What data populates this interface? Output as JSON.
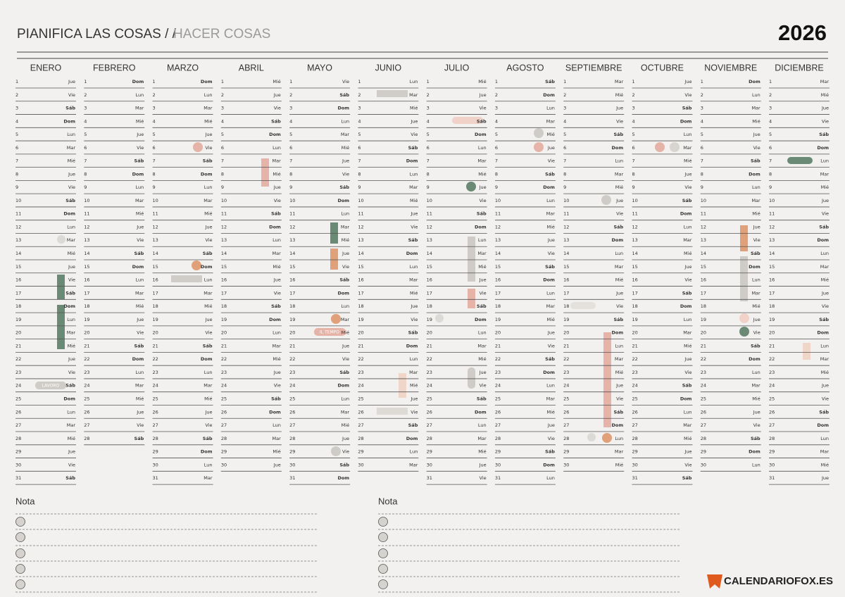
{
  "header": {
    "title": "PIANIFICA LAS COSAS / /",
    "subtitle": "HACER COSAS",
    "year": "2026"
  },
  "months": [
    {
      "name": "ENERO",
      "days": [
        1,
        2,
        3,
        4,
        5,
        6,
        7,
        8,
        9,
        10,
        11,
        12,
        13,
        14,
        15,
        16,
        17,
        18,
        19,
        20,
        21,
        22,
        23,
        24,
        25,
        26,
        27,
        28,
        29,
        30,
        31
      ],
      "weekdays": [
        "Jue",
        "Vie",
        "Sáb",
        "Dom",
        "Lun",
        "Mar",
        "Mié",
        "Jue",
        "Vie",
        "Sáb",
        "Dom",
        "Lun",
        "Mar",
        "Mié",
        "Jue",
        "Vie",
        "Sáb",
        "Dom",
        "Lun",
        "Mar",
        "Mié",
        "Jue",
        "Vie",
        "Sáb",
        "Dom",
        "Lun",
        "Mar",
        "Mié",
        "Jue",
        "Vie",
        "Sáb"
      ]
    },
    {
      "name": "FEBRERO",
      "days": [
        1,
        2,
        3,
        4,
        5,
        6,
        7,
        8,
        9,
        10,
        11,
        12,
        13,
        14,
        15,
        16,
        17,
        18,
        19,
        20,
        21,
        22,
        23,
        24,
        25,
        26,
        27,
        28
      ],
      "weekdays": [
        "Dom",
        "Lun",
        "Mar",
        "Mié",
        "Jue",
        "Vie",
        "Sáb",
        "Dom",
        "Lun",
        "Mar",
        "Mié",
        "Jue",
        "Vie",
        "Sáb",
        "Dom",
        "Lun",
        "Mar",
        "Mié",
        "Jue",
        "Vie",
        "Sáb",
        "Dom",
        "Lun",
        "Mar",
        "Mié",
        "Jue",
        "Vie",
        "Sáb"
      ]
    },
    {
      "name": "MARZO",
      "days": [
        1,
        2,
        3,
        4,
        5,
        6,
        7,
        8,
        9,
        10,
        11,
        12,
        13,
        14,
        15,
        16,
        17,
        18,
        19,
        20,
        21,
        22,
        23,
        24,
        25,
        26,
        27,
        28,
        29,
        30,
        31
      ],
      "weekdays": [
        "Dom",
        "Lun",
        "Mar",
        "Mié",
        "Jue",
        "Vie",
        "Sáb",
        "Dom",
        "Lun",
        "Mar",
        "Mié",
        "Jue",
        "Vie",
        "Sáb",
        "Dom",
        "Lun",
        "Mar",
        "Mié",
        "Jue",
        "Vie",
        "Sáb",
        "Dom",
        "Lun",
        "Mar",
        "Mié",
        "Jue",
        "Vie",
        "Sáb",
        "Dom",
        "Lun",
        "Mar"
      ]
    },
    {
      "name": "ABRIL",
      "days": [
        1,
        2,
        3,
        4,
        5,
        6,
        7,
        8,
        9,
        10,
        11,
        12,
        13,
        14,
        15,
        16,
        17,
        18,
        19,
        20,
        21,
        22,
        23,
        24,
        25,
        26,
        27,
        28,
        29,
        30
      ],
      "weekdays": [
        "Mié",
        "Jue",
        "Vie",
        "Sáb",
        "Dom",
        "Lun",
        "Mar",
        "Mié",
        "Jue",
        "Vie",
        "Sáb",
        "Dom",
        "Lun",
        "Mar",
        "Mié",
        "Jue",
        "Vie",
        "Sáb",
        "Dom",
        "Lun",
        "Mar",
        "Mié",
        "Jue",
        "Vie",
        "Sáb",
        "Dom",
        "Lun",
        "Mar",
        "Mié",
        "Jue"
      ]
    },
    {
      "name": "MAYO",
      "days": [
        1,
        2,
        3,
        4,
        5,
        6,
        7,
        8,
        9,
        10,
        11,
        12,
        13,
        14,
        15,
        16,
        17,
        18,
        19,
        20,
        21,
        22,
        23,
        24,
        25,
        26,
        27,
        28,
        29,
        30,
        31
      ],
      "weekdays": [
        "Vie",
        "Sáb",
        "Dom",
        "Lun",
        "Mar",
        "Mié",
        "Jue",
        "Vie",
        "Sáb",
        "Dom",
        "Lun",
        "Mar",
        "Mié",
        "Jue",
        "Vie",
        "Sáb",
        "Dom",
        "Lun",
        "Mar",
        "Mié",
        "Jue",
        "Vie",
        "Sáb",
        "Dom",
        "Lun",
        "Mar",
        "Mié",
        "Jue",
        "Vie",
        "Sáb",
        "Dom"
      ]
    },
    {
      "name": "JUNIO",
      "days": [
        1,
        2,
        3,
        4,
        5,
        6,
        7,
        8,
        9,
        10,
        11,
        12,
        13,
        14,
        15,
        16,
        17,
        18,
        19,
        20,
        21,
        22,
        23,
        24,
        25,
        26,
        27,
        28,
        29,
        30
      ],
      "weekdays": [
        "Lun",
        "Mar",
        "Mié",
        "Jue",
        "Vie",
        "Sáb",
        "Dom",
        "Lun",
        "Mar",
        "Mié",
        "Jue",
        "Vie",
        "Sáb",
        "Dom",
        "Lun",
        "Mar",
        "Mié",
        "Jue",
        "Vie",
        "Sáb",
        "Dom",
        "Lun",
        "Mar",
        "Mié",
        "Jue",
        "Vie",
        "Sáb",
        "Dom",
        "Lun",
        "Mar"
      ]
    },
    {
      "name": "JULIO",
      "days": [
        1,
        2,
        3,
        4,
        5,
        6,
        7,
        8,
        9,
        10,
        11,
        12,
        13,
        14,
        15,
        16,
        17,
        18,
        19,
        20,
        21,
        22,
        23,
        24,
        25,
        26,
        27,
        28,
        29,
        30,
        31
      ],
      "weekdays": [
        "Mié",
        "Jue",
        "Vie",
        "Sáb",
        "Dom",
        "Lun",
        "Mar",
        "Mié",
        "Jue",
        "Vie",
        "Sáb",
        "Dom",
        "Lun",
        "Mar",
        "Mié",
        "Jue",
        "Vie",
        "Sáb",
        "Dom",
        "Lun",
        "Mar",
        "Mié",
        "Jue",
        "Vie",
        "Sáb",
        "Dom",
        "Lun",
        "Mar",
        "Mié",
        "Jue",
        "Vie"
      ]
    },
    {
      "name": "AGOSTO",
      "days": [
        1,
        2,
        3,
        4,
        5,
        6,
        7,
        8,
        9,
        10,
        11,
        12,
        13,
        14,
        15,
        16,
        17,
        18,
        19,
        20,
        21,
        22,
        23,
        24,
        25,
        26,
        27,
        28,
        29,
        30,
        31
      ],
      "weekdays": [
        "Sáb",
        "Dom",
        "Lun",
        "Mar",
        "Mié",
        "Jue",
        "Vie",
        "Sáb",
        "Dom",
        "Lun",
        "Mar",
        "Mié",
        "Jue",
        "Vie",
        "Sáb",
        "Dom",
        "Lun",
        "Mar",
        "Mié",
        "Jue",
        "Vie",
        "Sáb",
        "Dom",
        "Lun",
        "Mar",
        "Mié",
        "Jue",
        "Vie",
        "Sáb",
        "Dom",
        "Lun"
      ]
    },
    {
      "name": "SEPTIEMBRE",
      "days": [
        1,
        2,
        3,
        4,
        5,
        6,
        7,
        8,
        9,
        10,
        11,
        12,
        13,
        14,
        15,
        16,
        17,
        18,
        19,
        20,
        21,
        22,
        23,
        24,
        25,
        26,
        27,
        28,
        29,
        30
      ],
      "weekdays": [
        "Mar",
        "Mié",
        "Jue",
        "Vie",
        "Sáb",
        "Dom",
        "Lun",
        "Mar",
        "Mié",
        "Jue",
        "Vie",
        "Sáb",
        "Dom",
        "Lun",
        "Mar",
        "Mié",
        "Jue",
        "Vie",
        "Sáb",
        "Dom",
        "Lun",
        "Mar",
        "Mié",
        "Jue",
        "Vie",
        "Sáb",
        "Dom",
        "Lun",
        "Mar",
        "Mié"
      ]
    },
    {
      "name": "OCTUBRE",
      "days": [
        1,
        2,
        3,
        4,
        5,
        6,
        7,
        8,
        9,
        10,
        11,
        12,
        13,
        14,
        15,
        16,
        17,
        18,
        19,
        20,
        21,
        22,
        23,
        24,
        25,
        26,
        27,
        28,
        29,
        30,
        31
      ],
      "weekdays": [
        "Jue",
        "Vie",
        "Sáb",
        "Dom",
        "Lun",
        "Mar",
        "Mié",
        "Jue",
        "Vie",
        "Sáb",
        "Dom",
        "Lun",
        "Mar",
        "Mié",
        "Jue",
        "Vie",
        "Sáb",
        "Dom",
        "Lun",
        "Mar",
        "Mié",
        "Jue",
        "Vie",
        "Sáb",
        "Dom",
        "Lun",
        "Mar",
        "Mié",
        "Jue",
        "Vie",
        "Sáb"
      ]
    },
    {
      "name": "NOVIEMBRE",
      "days": [
        1,
        2,
        3,
        4,
        5,
        6,
        7,
        8,
        9,
        10,
        11,
        12,
        13,
        14,
        15,
        16,
        17,
        18,
        19,
        20,
        21,
        22,
        23,
        24,
        25,
        26,
        27,
        28,
        29,
        30
      ],
      "weekdays": [
        "Dom",
        "Lun",
        "Mar",
        "Mié",
        "Jue",
        "Vie",
        "Sáb",
        "Dom",
        "Lun",
        "Mar",
        "Mié",
        "Jue",
        "Vie",
        "Sáb",
        "Dom",
        "Lun",
        "Mar",
        "Mié",
        "Jue",
        "Vie",
        "Sáb",
        "Dom",
        "Lun",
        "Mar",
        "Mié",
        "Jue",
        "Vie",
        "Sáb",
        "Dom",
        "Lun"
      ]
    },
    {
      "name": "DICIEMBRE",
      "days": [
        1,
        2,
        3,
        4,
        5,
        6,
        7,
        8,
        9,
        10,
        11,
        12,
        13,
        14,
        15,
        16,
        17,
        18,
        19,
        20,
        21,
        22,
        23,
        24,
        25,
        26,
        27,
        28,
        29,
        30,
        31
      ],
      "weekdays": [
        "Mar",
        "Mié",
        "Jue",
        "Vie",
        "Sáb",
        "Dom",
        "Lun",
        "Mar",
        "Mié",
        "Jue",
        "Vie",
        "Sáb",
        "Dom",
        "Lun",
        "Mar",
        "Mié",
        "Jue",
        "Vie",
        "Sáb",
        "Dom",
        "Lun",
        "Mar",
        "Mié",
        "Jue",
        "Vie",
        "Sáb",
        "Dom",
        "Lun",
        "Mar",
        "Mié",
        "Jue"
      ]
    }
  ],
  "stickers": [
    "LAVORO",
    "IL TEMPO"
  ],
  "notes": [
    "Nota",
    "Nota"
  ],
  "logo": "CALENDARIOFOX.ES"
}
